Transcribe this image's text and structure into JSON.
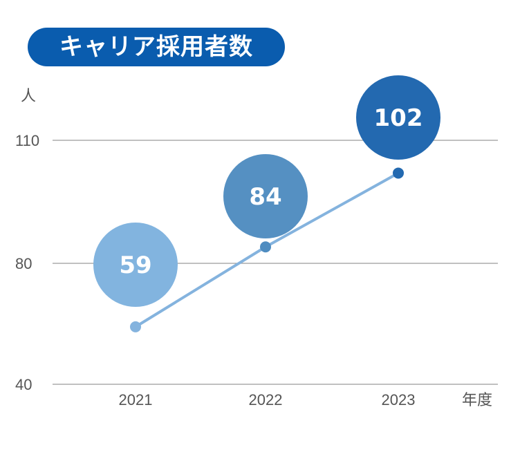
{
  "title": "キャリア採用者数",
  "chart_data": {
    "type": "line",
    "categories": [
      "2021",
      "2022",
      "2023"
    ],
    "values": [
      59,
      84,
      102
    ],
    "data_labels": [
      "59",
      "84",
      "102"
    ],
    "xlabel": "年度",
    "ylabel": "人",
    "yticks": [
      40,
      80,
      110
    ],
    "ylim": [
      40,
      110
    ],
    "grid": true,
    "colors": {
      "line": "#84b3de",
      "point_2021": "#84b3de",
      "point_2022": "#4f8cc0",
      "point_2023": "#2369b0",
      "bubble_2021": "#82b4df",
      "bubble_2022": "#5590c2",
      "bubble_2023": "#2369b0",
      "title_bg": "#0a5cae",
      "grid": "#9a9a9a"
    }
  }
}
